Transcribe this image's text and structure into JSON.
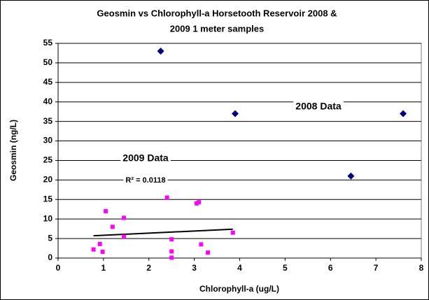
{
  "chart_data": {
    "type": "scatter",
    "title": [
      "Geosmin vs Chlorophyll-a Horsetooth Reservoir 2008 &",
      "2009 1 meter samples"
    ],
    "x_label": "Chlorophyll-a (ug/L)",
    "y_label": "Geosmin (ng/L)",
    "xlim": [
      0,
      8
    ],
    "xticks": [
      0,
      1,
      2,
      3,
      4,
      5,
      6,
      7,
      8
    ],
    "ylim": [
      0,
      55
    ],
    "yticks": [
      0,
      5,
      10,
      15,
      20,
      25,
      30,
      35,
      40,
      45,
      50,
      55
    ],
    "grid": true,
    "series": [
      {
        "name": "2008 Data",
        "color": "#000080",
        "marker": "diamond",
        "x": [
          2.26,
          3.9,
          6.45,
          7.6
        ],
        "values": [
          53,
          37,
          21,
          37
        ]
      },
      {
        "name": "2009 Data",
        "color": "#ff00ff",
        "marker": "square",
        "x": [
          0.78,
          0.92,
          0.98,
          1.05,
          1.2,
          1.45,
          1.45,
          2.4,
          2.5,
          2.5,
          2.5,
          3.05,
          3.1,
          3.15,
          3.3,
          3.85
        ],
        "values": [
          2.2,
          3.6,
          1.6,
          12,
          8,
          10.3,
          5.5,
          15.5,
          4.8,
          1.7,
          0.1,
          14,
          14.3,
          3.5,
          1.4,
          6.5
        ]
      }
    ],
    "trendline": {
      "color": "#000000",
      "x": [
        0.78,
        3.85
      ],
      "values": [
        5.7,
        7.4
      ]
    },
    "annotations": [
      "2008 Data",
      "2009 Data",
      "R² = 0.0118"
    ]
  }
}
